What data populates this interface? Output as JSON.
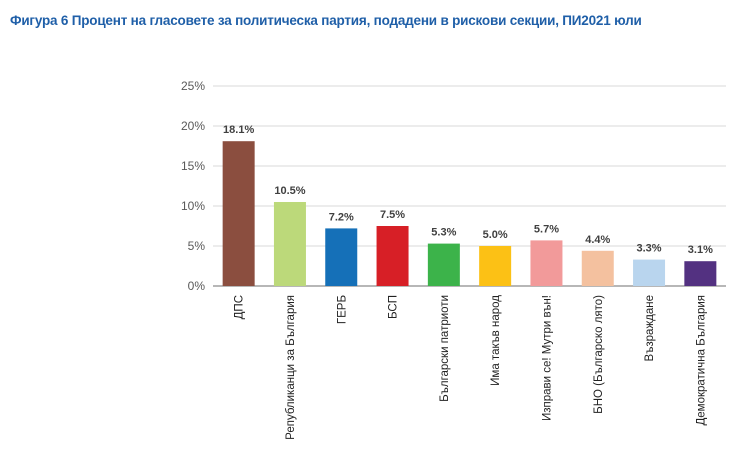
{
  "chart_data": {
    "type": "bar",
    "title": "Фигура 6 Процент на гласовете за политическа партия, подадени в рискови секции, ПИ2021 юли",
    "xlabel": "",
    "ylabel": "",
    "ylim": [
      0,
      25
    ],
    "yticks": [
      "0%",
      "5%",
      "10%",
      "15%",
      "20%",
      "25%"
    ],
    "grid": true,
    "categories": [
      "ДПС",
      "Републиканци за България",
      "ГЕРБ",
      "БСП",
      "Български патриоти",
      "Има такъв народ",
      "Изправи се! Мутри вън!",
      "БНО (Българско лято)",
      "Възраждане",
      "Демократична България"
    ],
    "values": [
      18.1,
      10.5,
      7.2,
      7.5,
      5.3,
      5.0,
      5.7,
      4.4,
      3.3,
      3.1
    ],
    "data_labels": [
      "18.1%",
      "10.5%",
      "7.2%",
      "7.5%",
      "5.3%",
      "5.0%",
      "5.7%",
      "4.4%",
      "3.3%",
      "3.1%"
    ],
    "colors": [
      "#8b4e3f",
      "#bcd97a",
      "#1570b8",
      "#d71f26",
      "#3cb34a",
      "#fcc115",
      "#f29a9a",
      "#f4c19f",
      "#b9d5ee",
      "#533181"
    ]
  }
}
